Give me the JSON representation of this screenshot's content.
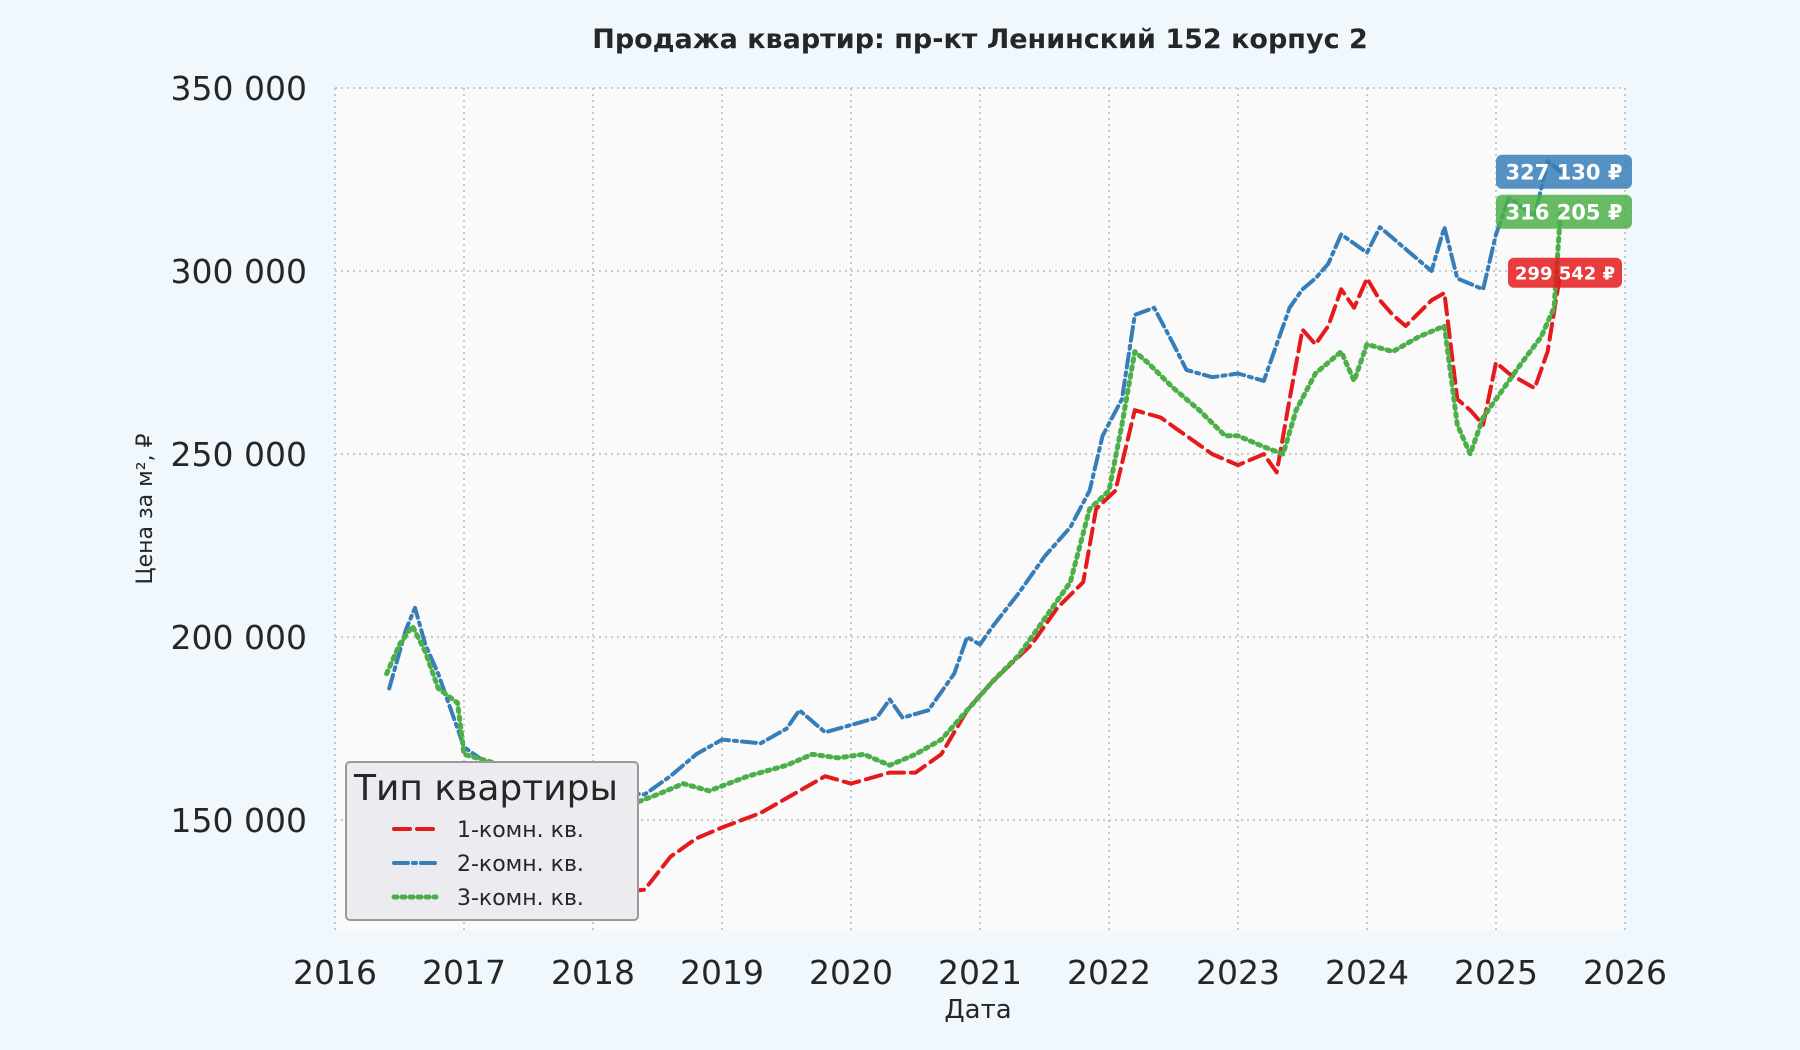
{
  "chart_data": {
    "type": "line",
    "title": "Продажа квартир: пр-кт Ленинский 152 корпус 2",
    "xlabel": "Дата",
    "ylabel": "Цена за м², ₽",
    "xlim": [
      2016.0,
      2026.0
    ],
    "ylim": [
      120000,
      350000
    ],
    "x_ticks": [
      "2016",
      "2017",
      "2018",
      "2019",
      "2020",
      "2021",
      "2022",
      "2023",
      "2024",
      "2025",
      "2026"
    ],
    "y_ticks": [
      {
        "value": 150000,
        "label": "150 000"
      },
      {
        "value": 200000,
        "label": "200 000"
      },
      {
        "value": 250000,
        "label": "250 000"
      },
      {
        "value": 300000,
        "label": "300 000"
      },
      {
        "value": 350000,
        "label": "350 000"
      }
    ],
    "grid": true,
    "legend": {
      "title": "Тип квартиры",
      "placement": "lower-left"
    },
    "series": [
      {
        "name": "1-комн. кв.",
        "color": "#e41a1c",
        "style": "dashed",
        "points": [
          [
            2016.6,
            150000
          ],
          [
            2016.9,
            145000
          ],
          [
            2017.2,
            140000
          ],
          [
            2017.5,
            138000
          ],
          [
            2017.8,
            134000
          ],
          [
            2018.1,
            130000
          ],
          [
            2018.4,
            131000
          ],
          [
            2018.6,
            140000
          ],
          [
            2018.8,
            145000
          ],
          [
            2019.0,
            148000
          ],
          [
            2019.3,
            152000
          ],
          [
            2019.6,
            158000
          ],
          [
            2019.8,
            162000
          ],
          [
            2020.0,
            160000
          ],
          [
            2020.3,
            163000
          ],
          [
            2020.5,
            163000
          ],
          [
            2020.7,
            168000
          ],
          [
            2020.9,
            180000
          ],
          [
            2021.1,
            188000
          ],
          [
            2021.4,
            198000
          ],
          [
            2021.6,
            208000
          ],
          [
            2021.8,
            215000
          ],
          [
            2021.9,
            235000
          ],
          [
            2022.05,
            240000
          ],
          [
            2022.2,
            262000
          ],
          [
            2022.4,
            260000
          ],
          [
            2022.6,
            255000
          ],
          [
            2022.8,
            250000
          ],
          [
            2023.0,
            247000
          ],
          [
            2023.2,
            250000
          ],
          [
            2023.3,
            245000
          ],
          [
            2023.4,
            265000
          ],
          [
            2023.5,
            284000
          ],
          [
            2023.6,
            280000
          ],
          [
            2023.7,
            285000
          ],
          [
            2023.8,
            295000
          ],
          [
            2023.9,
            290000
          ],
          [
            2024.0,
            298000
          ],
          [
            2024.1,
            292000
          ],
          [
            2024.2,
            288000
          ],
          [
            2024.3,
            285000
          ],
          [
            2024.5,
            292000
          ],
          [
            2024.6,
            294000
          ],
          [
            2024.7,
            265000
          ],
          [
            2024.8,
            262000
          ],
          [
            2024.9,
            258000
          ],
          [
            2025.0,
            275000
          ],
          [
            2025.1,
            272000
          ],
          [
            2025.2,
            270000
          ],
          [
            2025.3,
            268000
          ],
          [
            2025.4,
            278000
          ],
          [
            2025.5,
            299542
          ]
        ]
      },
      {
        "name": "2-комн. кв.",
        "color": "#377eb8",
        "style": "dash-dot",
        "points": [
          [
            2016.42,
            186000
          ],
          [
            2016.55,
            202000
          ],
          [
            2016.62,
            208000
          ],
          [
            2016.7,
            198000
          ],
          [
            2016.8,
            190000
          ],
          [
            2016.9,
            180000
          ],
          [
            2017.0,
            170000
          ],
          [
            2017.2,
            165000
          ],
          [
            2017.5,
            162000
          ],
          [
            2017.8,
            163000
          ],
          [
            2018.1,
            158000
          ],
          [
            2018.4,
            157000
          ],
          [
            2018.6,
            162000
          ],
          [
            2018.8,
            168000
          ],
          [
            2019.0,
            172000
          ],
          [
            2019.3,
            171000
          ],
          [
            2019.5,
            175000
          ],
          [
            2019.6,
            180000
          ],
          [
            2019.8,
            174000
          ],
          [
            2020.0,
            176000
          ],
          [
            2020.2,
            178000
          ],
          [
            2020.3,
            183000
          ],
          [
            2020.4,
            178000
          ],
          [
            2020.6,
            180000
          ],
          [
            2020.8,
            190000
          ],
          [
            2020.9,
            200000
          ],
          [
            2021.0,
            198000
          ],
          [
            2021.1,
            203000
          ],
          [
            2021.3,
            212000
          ],
          [
            2021.5,
            222000
          ],
          [
            2021.7,
            230000
          ],
          [
            2021.85,
            240000
          ],
          [
            2021.95,
            255000
          ],
          [
            2022.1,
            265000
          ],
          [
            2022.2,
            288000
          ],
          [
            2022.35,
            290000
          ],
          [
            2022.5,
            280000
          ],
          [
            2022.6,
            273000
          ],
          [
            2022.8,
            271000
          ],
          [
            2023.0,
            272000
          ],
          [
            2023.2,
            270000
          ],
          [
            2023.4,
            290000
          ],
          [
            2023.5,
            295000
          ],
          [
            2023.6,
            298000
          ],
          [
            2023.7,
            302000
          ],
          [
            2023.8,
            310000
          ],
          [
            2024.0,
            305000
          ],
          [
            2024.1,
            312000
          ],
          [
            2024.3,
            306000
          ],
          [
            2024.5,
            300000
          ],
          [
            2024.6,
            312000
          ],
          [
            2024.7,
            298000
          ],
          [
            2024.9,
            295000
          ],
          [
            2025.0,
            310000
          ],
          [
            2025.1,
            320000
          ],
          [
            2025.3,
            315000
          ],
          [
            2025.4,
            330000
          ],
          [
            2025.5,
            327130
          ]
        ]
      },
      {
        "name": "3-комн. кв.",
        "color": "#4daf4a",
        "style": "dotted",
        "points": [
          [
            2016.4,
            190000
          ],
          [
            2016.5,
            198000
          ],
          [
            2016.6,
            203000
          ],
          [
            2016.7,
            196000
          ],
          [
            2016.8,
            186000
          ],
          [
            2016.95,
            182000
          ],
          [
            2017.0,
            168000
          ],
          [
            2017.3,
            165000
          ],
          [
            2017.6,
            162000
          ],
          [
            2017.9,
            158000
          ],
          [
            2018.2,
            153000
          ],
          [
            2018.5,
            157000
          ],
          [
            2018.7,
            160000
          ],
          [
            2018.9,
            158000
          ],
          [
            2019.2,
            162000
          ],
          [
            2019.5,
            165000
          ],
          [
            2019.7,
            168000
          ],
          [
            2019.9,
            167000
          ],
          [
            2020.1,
            168000
          ],
          [
            2020.3,
            165000
          ],
          [
            2020.5,
            168000
          ],
          [
            2020.7,
            172000
          ],
          [
            2020.9,
            180000
          ],
          [
            2021.1,
            188000
          ],
          [
            2021.3,
            195000
          ],
          [
            2021.5,
            205000
          ],
          [
            2021.7,
            215000
          ],
          [
            2021.85,
            235000
          ],
          [
            2022.0,
            240000
          ],
          [
            2022.1,
            258000
          ],
          [
            2022.2,
            278000
          ],
          [
            2022.3,
            275000
          ],
          [
            2022.5,
            268000
          ],
          [
            2022.7,
            262000
          ],
          [
            2022.9,
            255000
          ],
          [
            2023.0,
            255000
          ],
          [
            2023.2,
            252000
          ],
          [
            2023.35,
            250000
          ],
          [
            2023.45,
            262000
          ],
          [
            2023.6,
            272000
          ],
          [
            2023.8,
            278000
          ],
          [
            2023.9,
            270000
          ],
          [
            2024.0,
            280000
          ],
          [
            2024.2,
            278000
          ],
          [
            2024.4,
            282000
          ],
          [
            2024.6,
            285000
          ],
          [
            2024.7,
            258000
          ],
          [
            2024.8,
            250000
          ],
          [
            2024.9,
            260000
          ],
          [
            2025.0,
            265000
          ],
          [
            2025.2,
            275000
          ],
          [
            2025.35,
            282000
          ],
          [
            2025.45,
            290000
          ],
          [
            2025.5,
            316205
          ]
        ]
      }
    ],
    "end_labels": [
      {
        "series": "2-комн. кв.",
        "value": 327130,
        "text": "327 130 ₽",
        "color": "#377eb8"
      },
      {
        "series": "3-комн. кв.",
        "value": 316205,
        "text": "316 205 ₽",
        "color": "#4daf4a"
      },
      {
        "series": "1-комн. кв.",
        "value": 299542,
        "text": "299 542 ₽",
        "color": "#e41a1c"
      }
    ]
  }
}
